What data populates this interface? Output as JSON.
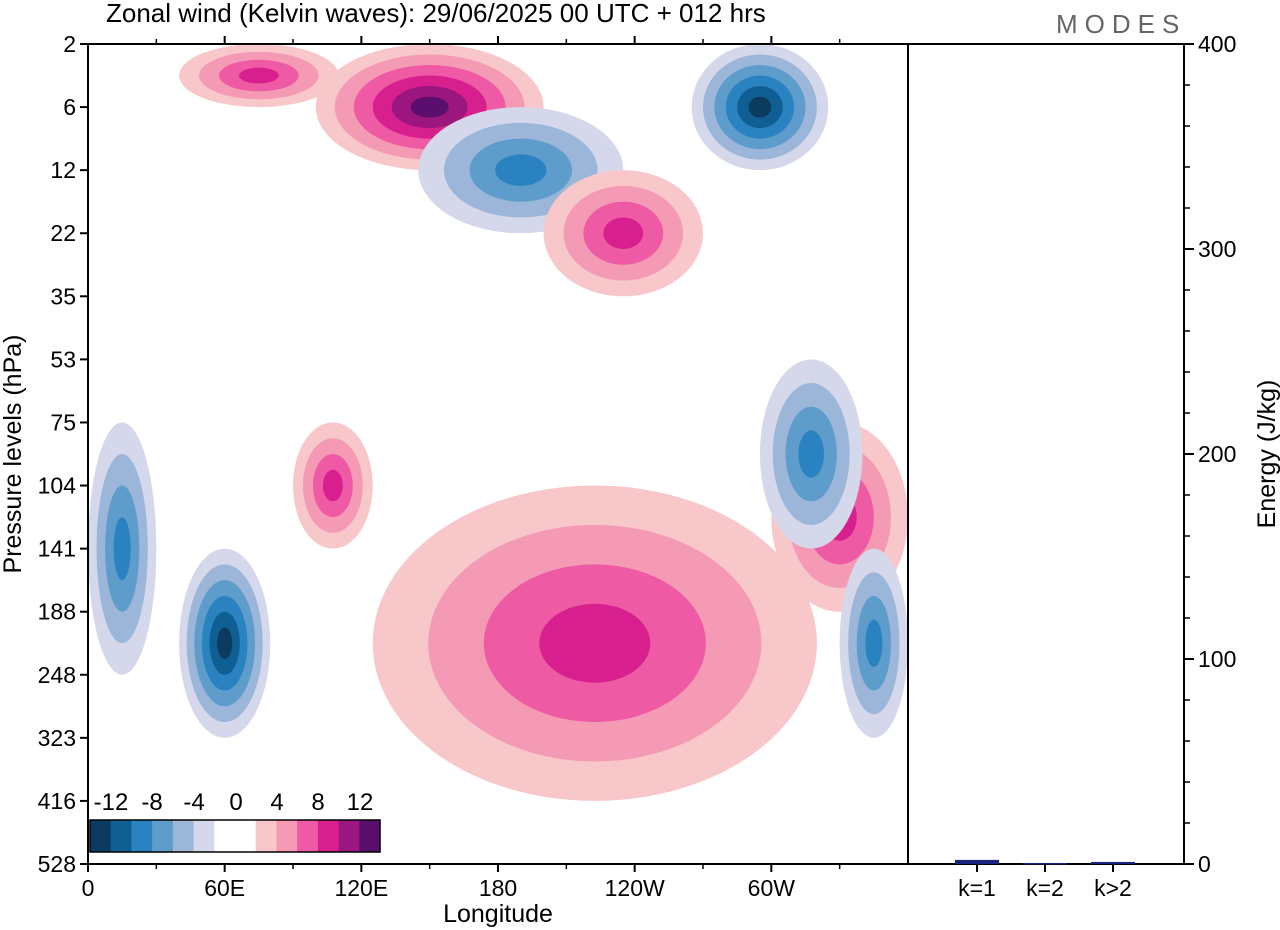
{
  "title": "Zonal wind (Kelvin waves):  29/06/2025  00 UTC  + 012 hrs",
  "brand": "MODES",
  "chart_data": [
    {
      "type": "heatmap",
      "title": "Zonal wind (Kelvin waves):  29/06/2025  00 UTC  + 012 hrs",
      "xlabel": "Longitude",
      "ylabel": "Pressure levels (hPa)",
      "x_ticks": [
        {
          "deg": 0,
          "label": "0"
        },
        {
          "deg": 60,
          "label": "60E"
        },
        {
          "deg": 120,
          "label": "120E"
        },
        {
          "deg": 180,
          "label": "180"
        },
        {
          "deg": 240,
          "label": "120W"
        },
        {
          "deg": 300,
          "label": "60W"
        }
      ],
      "xlim": [
        0,
        360
      ],
      "y_levels": [
        2,
        6,
        12,
        22,
        35,
        53,
        75,
        104,
        141,
        188,
        248,
        323,
        416,
        528
      ],
      "y_scale": "level-index",
      "colorbar": {
        "placement": "bottom-left",
        "labels": [
          "-12",
          "-8",
          "-4",
          "0",
          "4",
          "8",
          "12"
        ],
        "colors": [
          "#0b3b5e",
          "#0f5f94",
          "#2a82c0",
          "#5e9ccb",
          "#9cb6d9",
          "#d4d8ea",
          "#ffffff",
          "#ffffff",
          "#f8c7c9",
          "#f59ab4",
          "#ee5aa3",
          "#d81f8e",
          "#9c1680",
          "#5a0e6e"
        ]
      },
      "features": [
        {
          "sign": "neg",
          "lon_range": [
            40,
            80
          ],
          "level_range": [
            141,
            323
          ],
          "peak": -12
        },
        {
          "sign": "neg",
          "lon_range": [
            0,
            30
          ],
          "level_range": [
            75,
            248
          ],
          "peak": -8
        },
        {
          "sign": "pos",
          "lon_range": [
            90,
            125
          ],
          "level_range": [
            75,
            141
          ],
          "peak": 8
        },
        {
          "sign": "pos",
          "lon_range": [
            125,
            320
          ],
          "level_range": [
            104,
            416
          ],
          "peak": 8
        },
        {
          "sign": "pos",
          "lon_range": [
            300,
            360
          ],
          "level_range": [
            75,
            188
          ],
          "peak": 8
        },
        {
          "sign": "neg",
          "lon_range": [
            295,
            340
          ],
          "level_range": [
            53,
            141
          ],
          "peak": -8
        },
        {
          "sign": "neg",
          "lon_range": [
            330,
            360
          ],
          "level_range": [
            141,
            323
          ],
          "peak": -8
        },
        {
          "sign": "pos",
          "lon_range": [
            100,
            200
          ],
          "level_range": [
            2,
            12
          ],
          "peak": 12
        },
        {
          "sign": "neg",
          "lon_range": [
            145,
            235
          ],
          "level_range": [
            6,
            22
          ],
          "peak": -8
        },
        {
          "sign": "neg",
          "lon_range": [
            265,
            325
          ],
          "level_range": [
            2,
            12
          ],
          "peak": -12
        },
        {
          "sign": "pos",
          "lon_range": [
            40,
            110
          ],
          "level_range": [
            2,
            6
          ],
          "peak": 8
        },
        {
          "sign": "pos",
          "lon_range": [
            200,
            270
          ],
          "level_range": [
            12,
            35
          ],
          "peak": 8
        }
      ]
    },
    {
      "type": "bar",
      "categories": [
        "k=1",
        "k=2",
        "k>2"
      ],
      "values": [
        2,
        0.5,
        1
      ],
      "ylabel": "Energy (J/kg)",
      "ylim": [
        0,
        400
      ],
      "yticks": [
        0,
        100,
        200,
        300,
        400
      ],
      "bar_color": "#1a237e"
    }
  ]
}
